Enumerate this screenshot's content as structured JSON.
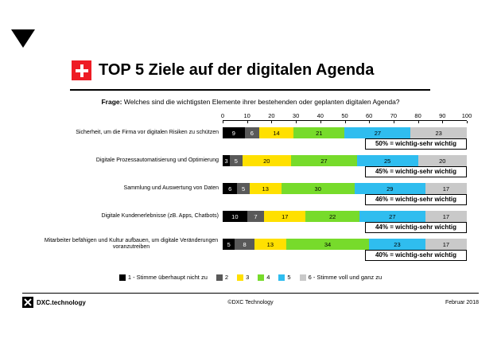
{
  "slide": {
    "title": "TOP 5 Ziele auf der digitalen Agenda",
    "question_prefix": "Frage:",
    "question_text": "Welches sind die wichtigsten Elemente ihrer bestehenden oder geplanten digitalen Agenda?",
    "footer_brand": "DXC.technology",
    "footer_center": "©DXC Technology",
    "footer_right": "Februar 2018"
  },
  "colors": {
    "flag_red": "#EE1C25",
    "scale": [
      "#000000",
      "#595959",
      "#FFE000",
      "#77DB2B",
      "#2FBDEF",
      "#C9C9C9"
    ],
    "value_text": [
      "#FFFFFF",
      "#FFFFFF",
      "#000000",
      "#000000",
      "#000000",
      "#000000"
    ]
  },
  "chart_data": {
    "type": "bar",
    "stacked": true,
    "orientation": "horizontal",
    "title": "TOP 5 Ziele auf der digitalen Agenda",
    "xlim": [
      0,
      100
    ],
    "xticks": [
      0,
      10,
      20,
      30,
      40,
      50,
      60,
      70,
      80,
      90,
      100
    ],
    "legend_position": "bottom",
    "categories": [
      "Sicherheit, um die Firma vor digitalen Risiken zu schützen",
      "Digitale Prozessautomatisierung und Optimierung",
      "Sammlung und Auswertung von Daten",
      "Digitale Kundenerlebnisse (zB. Apps, Chatbots)",
      "Mitarbeiter befähigen und Kultur aufbauen, um digitale Veränderungen voranzutreiben"
    ],
    "series": [
      {
        "name": "1 - Stimme überhaupt nicht zu",
        "values": [
          9,
          3,
          6,
          10,
          5
        ]
      },
      {
        "name": "2",
        "values": [
          6,
          5,
          5,
          7,
          8
        ]
      },
      {
        "name": "3",
        "values": [
          14,
          20,
          13,
          17,
          13
        ]
      },
      {
        "name": "4",
        "values": [
          21,
          27,
          30,
          22,
          34
        ]
      },
      {
        "name": "5",
        "values": [
          27,
          25,
          29,
          27,
          23
        ]
      },
      {
        "name": "6 - Stimme voll und ganz zu",
        "values": [
          23,
          20,
          17,
          17,
          17
        ]
      }
    ],
    "annotations": [
      "50% = wichtig-sehr wichtig",
      "45% = wichtig-sehr wichtig",
      "46% = wichtig-sehr wichtig",
      "44% = wichtig-sehr wichtig",
      "40% = wichtig-sehr wichtig"
    ]
  }
}
